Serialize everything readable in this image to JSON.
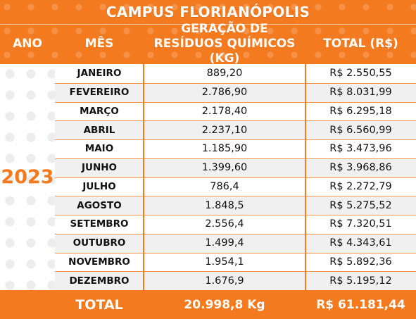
{
  "title": "CAMPUS FLORIANÓPOLIS",
  "headers": {
    "ano": "ANO",
    "mes": "MÊS",
    "geracao_line1": "GERAÇÃO DE",
    "geracao_line2": "RESÍDUOS QUÍMICOS (KG)",
    "total": "TOTAL (R$)"
  },
  "year": "2023",
  "rows": [
    {
      "mes": "JANEIRO",
      "geracao": "889,20",
      "total": "R$ 2.550,55"
    },
    {
      "mes": "FEVEREIRO",
      "geracao": "2.786,90",
      "total": "R$ 8.031,99"
    },
    {
      "mes": "MARÇO",
      "geracao": "2.178,40",
      "total": "R$ 6.295,18"
    },
    {
      "mes": "ABRIL",
      "geracao": "2.237,10",
      "total": "R$ 6.560,99"
    },
    {
      "mes": "MAIO",
      "geracao": "1.185,90",
      "total": "R$ 3.473,96"
    },
    {
      "mes": "JUNHO",
      "geracao": "1.399,60",
      "total": "R$ 3.968,86"
    },
    {
      "mes": "JULHO",
      "geracao": "786,4",
      "total": "R$ 2.272,79"
    },
    {
      "mes": "AGOSTO",
      "geracao": "1.848,5",
      "total": "R$ 5.275,52"
    },
    {
      "mes": "SETEMBRO",
      "geracao": "2.556,4",
      "total": "R$ 7.320,51"
    },
    {
      "mes": "OUTUBRO",
      "geracao": "1.499,4",
      "total": "R$ 4.343,61"
    },
    {
      "mes": "NOVEMBRO",
      "geracao": "1.954,1",
      "total": "R$ 5.892,36"
    },
    {
      "mes": "DEZEMBRO",
      "geracao": "1.676,9",
      "total": "R$ 5.195,12"
    }
  ],
  "footer": {
    "label": "TOTAL",
    "geracao": "20.998,8 Kg",
    "total": "R$ 61.181,44"
  },
  "colors": {
    "orange": "#f47a20",
    "white": "#ffffff",
    "text": "#111111"
  }
}
